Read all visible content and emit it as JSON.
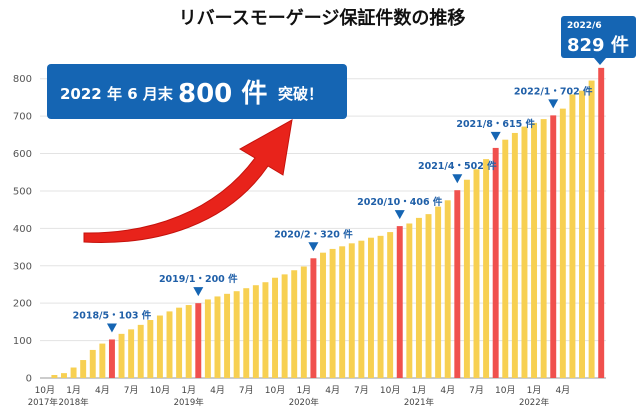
{
  "chart_data": {
    "type": "bar",
    "title": "リバースモーゲージ保証件数の推移",
    "ylim": [
      0,
      850
    ],
    "yticks": [
      0,
      100,
      200,
      300,
      400,
      500,
      600,
      700,
      800
    ],
    "grid": true,
    "colors": {
      "normal": "#f7d052",
      "highlight": "#f0504d",
      "accent": "#1565b3",
      "arrow": "#e8231b"
    },
    "series": [
      {
        "values": [
          0,
          8,
          13,
          28,
          48,
          75,
          92,
          103,
          118,
          130,
          142,
          155,
          167,
          178,
          188,
          195,
          200,
          210,
          218,
          225,
          232,
          240,
          248,
          256,
          268,
          277,
          288,
          298,
          320,
          335,
          345,
          352,
          360,
          367,
          375,
          380,
          390,
          406,
          413,
          428,
          438,
          458,
          475,
          502,
          530,
          558,
          585,
          615,
          637,
          655,
          672,
          682,
          692,
          702,
          720,
          758,
          768,
          795,
          829
        ],
        "highlight_index": [
          7,
          16,
          28,
          37,
          43,
          47,
          53,
          58
        ]
      }
    ],
    "xtick_labels": [
      {
        "i": 0,
        "text": "10月"
      },
      {
        "i": 3,
        "text": "1月"
      },
      {
        "i": 6,
        "text": "4月"
      },
      {
        "i": 9,
        "text": "7月"
      },
      {
        "i": 12,
        "text": "10月"
      },
      {
        "i": 15,
        "text": "1月"
      },
      {
        "i": 18,
        "text": "4月"
      },
      {
        "i": 21,
        "text": "7月"
      },
      {
        "i": 24,
        "text": "10月"
      },
      {
        "i": 27,
        "text": "1月"
      },
      {
        "i": 30,
        "text": "4月"
      },
      {
        "i": 33,
        "text": "7月"
      },
      {
        "i": 36,
        "text": "10月"
      },
      {
        "i": 39,
        "text": "1月"
      },
      {
        "i": 42,
        "text": "4月"
      },
      {
        "i": 45,
        "text": "7月"
      },
      {
        "i": 48,
        "text": "10月"
      },
      {
        "i": 51,
        "text": "1月"
      },
      {
        "i": 54,
        "text": "4月"
      }
    ],
    "year_labels": [
      {
        "i": 0,
        "text": "2017年"
      },
      {
        "i": 3,
        "text": "2018年"
      },
      {
        "i": 15,
        "text": "2019年"
      },
      {
        "i": 27,
        "text": "2020年"
      },
      {
        "i": 39,
        "text": "2021年"
      },
      {
        "i": 51,
        "text": "2022年"
      }
    ],
    "annotations": [
      {
        "i": 7,
        "text": "2018/5・103 件"
      },
      {
        "i": 16,
        "text": "2019/1・200 件"
      },
      {
        "i": 28,
        "text": "2020/2・320 件"
      },
      {
        "i": 37,
        "text": "2020/10・406 件"
      },
      {
        "i": 43,
        "text": "2021/4・502 件"
      },
      {
        "i": 47,
        "text": "2021/8・615 件"
      },
      {
        "i": 53,
        "text": "2022/1・702 件"
      }
    ],
    "callout": {
      "date": "2022/6",
      "value": "829 件"
    },
    "banner": {
      "prefix": "2022 年 6 月末",
      "number": "800 件",
      "suffix": "突破！"
    }
  }
}
